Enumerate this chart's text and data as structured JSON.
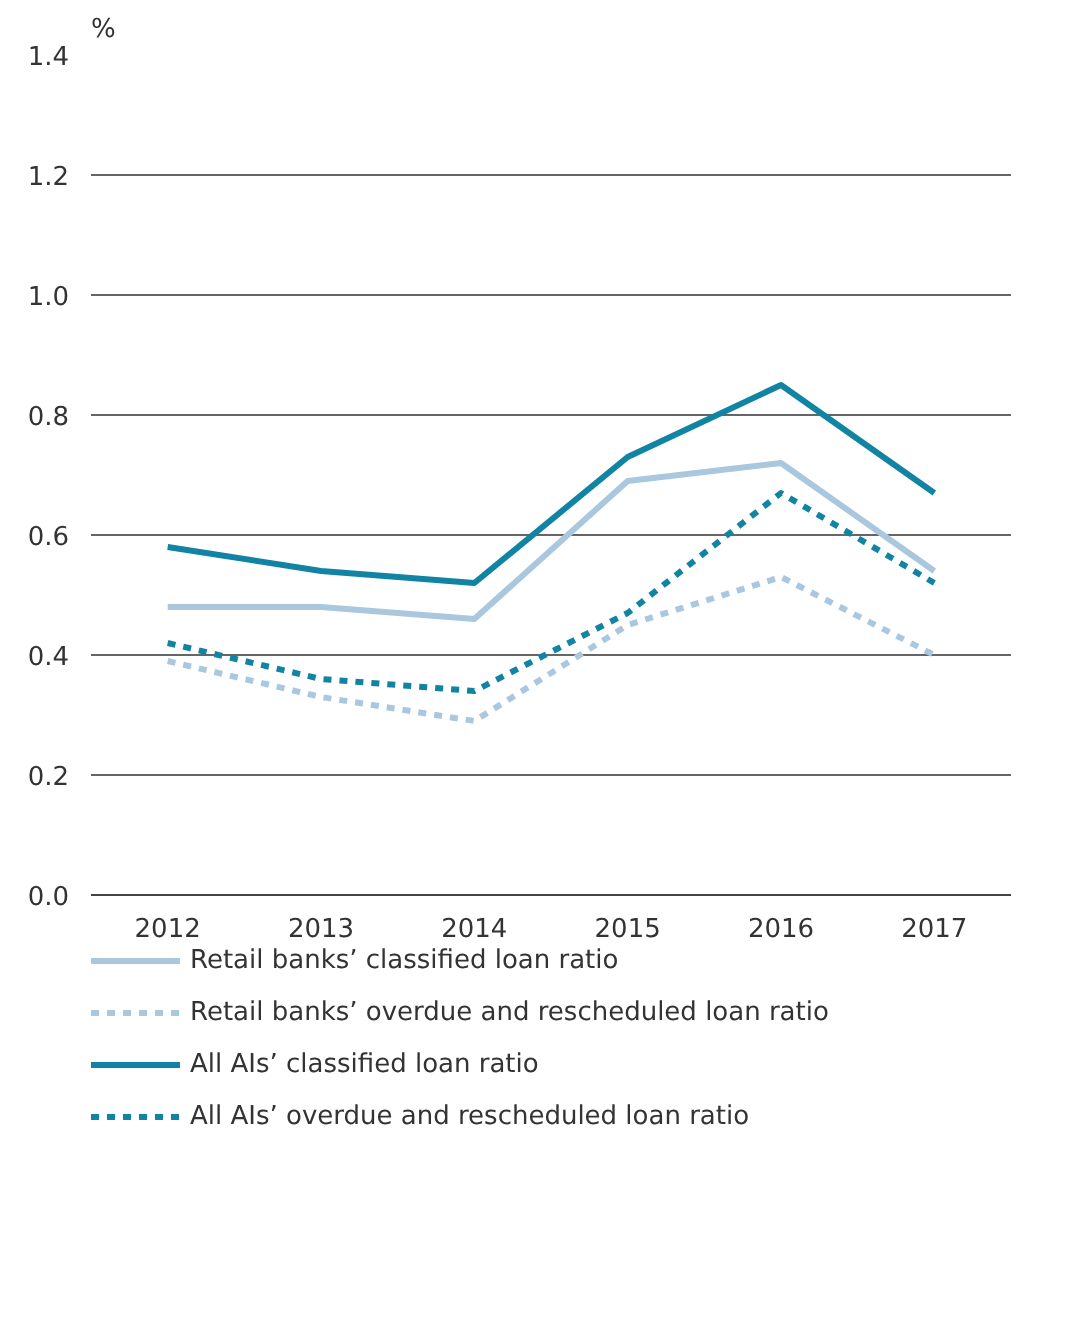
{
  "chart_data": {
    "type": "line",
    "ylabel": "%",
    "categories": [
      "2012",
      "2013",
      "2014",
      "2015",
      "2016",
      "2017"
    ],
    "ylim": [
      0,
      1.4
    ],
    "yticks": [
      {
        "value": 0,
        "label": "0.0"
      },
      0.2,
      0.4,
      0.6,
      0.8,
      {
        "value": 1,
        "label": "1.0"
      },
      1.2,
      1.4
    ],
    "grid": "y",
    "legend": "bottom",
    "marker": "none",
    "series": [
      {
        "name": "Retail banks’ classified loan ratio",
        "color": "#a9c7df",
        "line_style": "solid",
        "values": [
          0.48,
          0.48,
          0.46,
          0.69,
          0.72,
          0.54
        ]
      },
      {
        "name": "Retail banks’ overdue and rescheduled loan ratio",
        "color": "#a9c7df",
        "line_style": "dashed",
        "values": [
          0.39,
          0.33,
          0.29,
          0.45,
          0.53,
          0.4
        ]
      },
      {
        "name": "All AIs’ classified loan ratio",
        "color": "#1184a4",
        "line_style": "solid",
        "values": [
          0.58,
          0.54,
          0.52,
          0.73,
          0.85,
          0.67
        ]
      },
      {
        "name": "All AIs’ overdue and rescheduled loan ratio",
        "color": "#1184a4",
        "line_style": "dashed",
        "values": [
          0.42,
          0.36,
          0.34,
          0.47,
          0.67,
          0.52
        ]
      }
    ]
  }
}
